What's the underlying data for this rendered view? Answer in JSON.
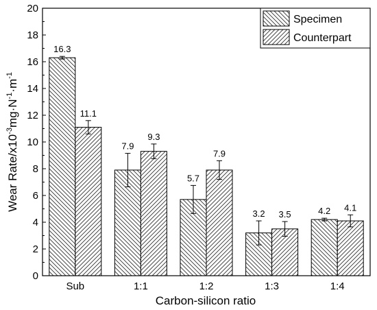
{
  "chart_data": {
    "type": "bar",
    "xlabel": "Carbon-silicon ratio",
    "ylabel_main": "Wear Rate/x10",
    "ylabel_sup1": "-3",
    "ylabel_mid": "mg·N",
    "ylabel_sup2": "-1",
    "ylabel_end": "·m",
    "ylabel_sup3": "-1",
    "ylim": [
      0,
      20
    ],
    "yticks": [
      "0",
      "2",
      "4",
      "6",
      "8",
      "10",
      "12",
      "14",
      "16",
      "18",
      "20"
    ],
    "categories": [
      "Sub",
      "1:1",
      "1:2",
      "1:3",
      "1:4"
    ],
    "series": [
      {
        "name": "Specimen",
        "values": [
          16.3,
          7.9,
          5.7,
          3.2,
          4.2
        ],
        "errors": [
          0.1,
          1.25,
          1.05,
          0.9,
          0.1
        ],
        "labels": [
          "16.3",
          "7.9",
          "5.7",
          "3.2",
          "4.2"
        ],
        "hatch": "backslash"
      },
      {
        "name": "Counterpart",
        "values": [
          11.1,
          9.3,
          7.9,
          3.5,
          4.1
        ],
        "errors": [
          0.5,
          0.55,
          0.7,
          0.55,
          0.45
        ],
        "labels": [
          "11.1",
          "9.3",
          "7.9",
          "3.5",
          "4.1"
        ],
        "hatch": "slash"
      }
    ],
    "legend_position": "top-right",
    "grid": false
  }
}
